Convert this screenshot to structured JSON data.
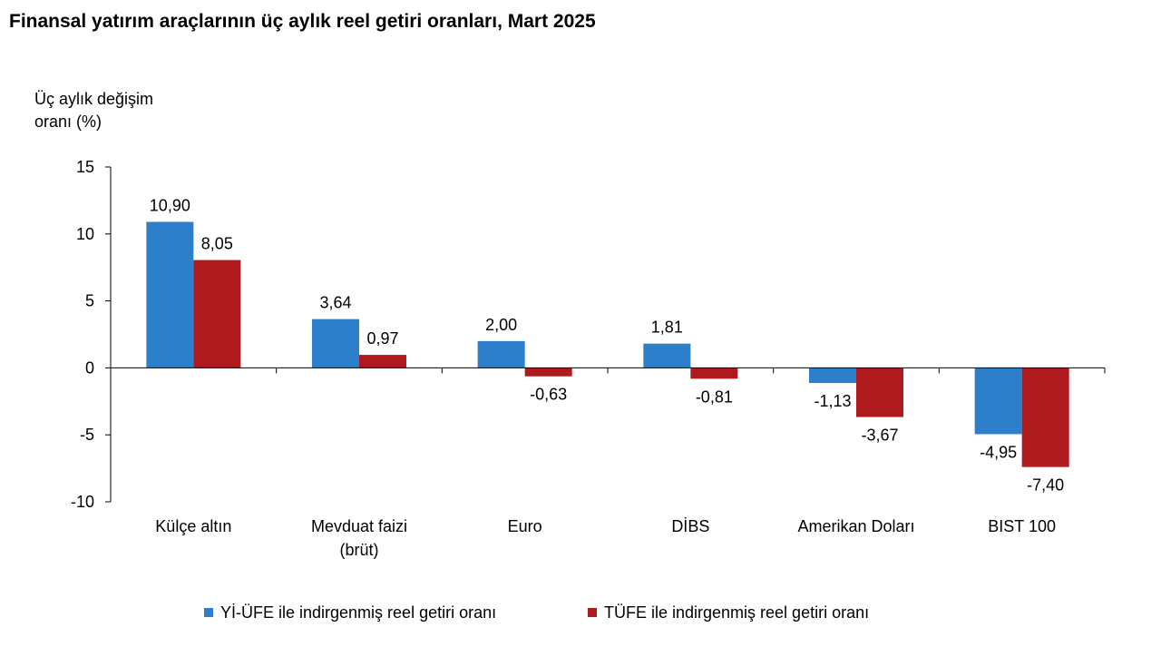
{
  "chart_data": {
    "type": "bar",
    "title": "Finansal yatırım araçlarının üç aylık reel getiri oranları, Mart 2025",
    "ylabel_lines": [
      "Üç aylık değişim",
      "oranı (%)"
    ],
    "xlabel": "",
    "ylim": [
      -10,
      15
    ],
    "yticks": [
      15,
      10,
      5,
      0,
      -5,
      -10
    ],
    "ytick_labels": [
      "15",
      "10",
      "5",
      "0",
      "-5",
      "-10"
    ],
    "categories": [
      "Külçe altın",
      "Mevduat faizi (brüt)",
      "Euro",
      "DİBS",
      "Amerikan Doları",
      "BIST 100"
    ],
    "category_lines": [
      [
        "Külçe altın"
      ],
      [
        "Mevduat faizi",
        "(brüt)"
      ],
      [
        "Euro"
      ],
      [
        "DİBS"
      ],
      [
        "Amerikan Doları"
      ],
      [
        "BIST 100"
      ]
    ],
    "series": [
      {
        "name": "Yİ-ÜFE ile indirgenmiş reel getiri oranı",
        "color": "#2e7fc9",
        "values": [
          10.9,
          3.64,
          2.0,
          1.81,
          -1.13,
          -4.95
        ],
        "labels": [
          "10,90",
          "3,64",
          "2,00",
          "1,81",
          "-1,13",
          "-4,95"
        ]
      },
      {
        "name": "TÜFE ile indirgenmiş reel getiri oranı",
        "color": "#ae1a1d",
        "values": [
          8.05,
          0.97,
          -0.63,
          -0.81,
          -3.67,
          -7.4
        ],
        "labels": [
          "8,05",
          "0,97",
          "-0,63",
          "-0,81",
          "-3,67",
          "-7,40"
        ]
      }
    ],
    "legend_position": "bottom",
    "grid": false
  }
}
